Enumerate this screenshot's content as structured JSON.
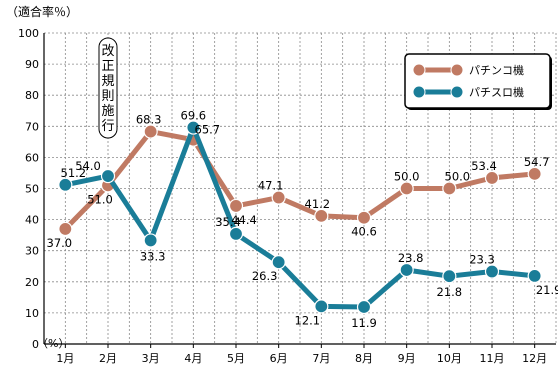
{
  "chart_data": {
    "type": "line",
    "title": "",
    "ylabel": "（適合率％）",
    "y_unit_small": "（%）",
    "ylim": [
      0,
      100
    ],
    "yticks": [
      0,
      10,
      20,
      30,
      40,
      50,
      60,
      70,
      80,
      90,
      100
    ],
    "categories": [
      "1月",
      "2月",
      "3月",
      "4月",
      "5月",
      "6月",
      "7月",
      "8月",
      "9月",
      "10月",
      "11月",
      "12月"
    ],
    "grid": true,
    "legend_position": "top-right",
    "annotation": {
      "text": "改正規則施行",
      "category": "2月"
    },
    "series": [
      {
        "name": "パチンコ機",
        "color": "#c07a63",
        "values": [
          37.0,
          51.0,
          68.3,
          65.7,
          44.4,
          47.1,
          41.2,
          40.6,
          50.0,
          50.0,
          53.4,
          54.7
        ]
      },
      {
        "name": "パチスロ機",
        "color": "#1a7d98",
        "values": [
          51.2,
          54.0,
          33.3,
          69.6,
          35.4,
          26.3,
          12.1,
          11.9,
          23.8,
          21.8,
          23.3,
          21.9
        ]
      }
    ]
  }
}
